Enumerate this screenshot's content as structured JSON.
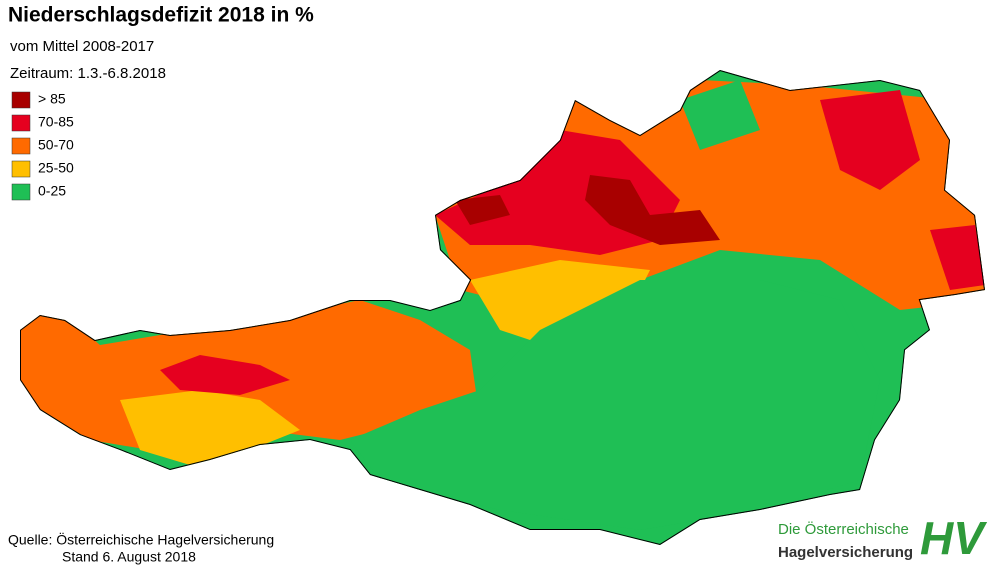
{
  "header": {
    "title": "Niederschlagsdefizit 2018 in %",
    "subtitle": "vom Mittel 2008-2017",
    "period": "Zeitraum: 1.3.-6.8.2018"
  },
  "legend": [
    {
      "label": "> 85",
      "color": "#a80000"
    },
    {
      "label": "70-85",
      "color": "#e5001f"
    },
    {
      "label": "50-70",
      "color": "#ff6a00"
    },
    {
      "label": "25-50",
      "color": "#ffbf00"
    },
    {
      "label": "0-25",
      "color": "#1fbf55"
    }
  ],
  "footer": {
    "source": "Quelle: Österreichische Hagelversicherung",
    "date": "Stand 6. August 2018"
  },
  "logo": {
    "line1": "Die Österreichische",
    "line2": "Hagelversicherung",
    "mark": "HV"
  }
}
